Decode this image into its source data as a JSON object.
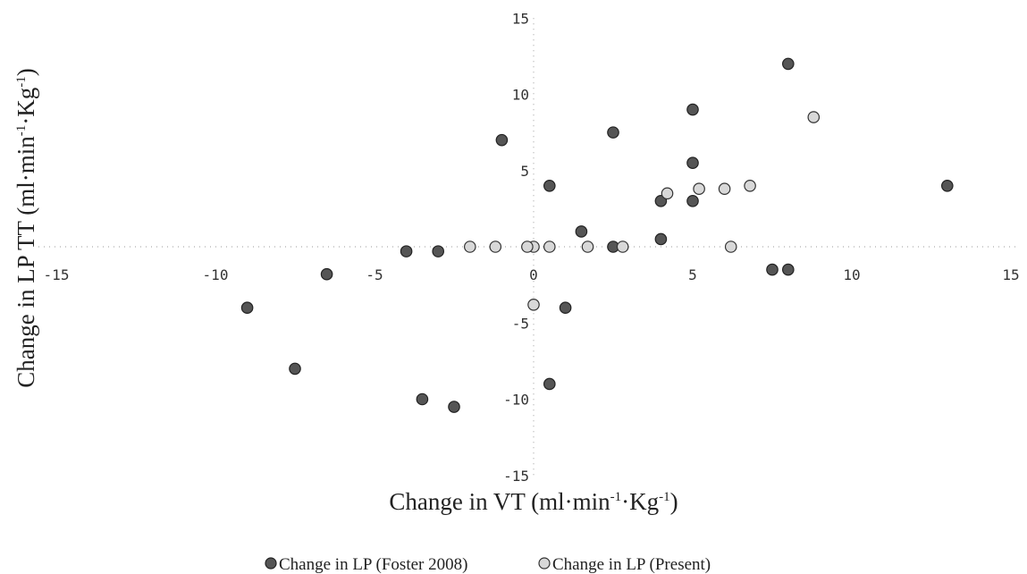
{
  "chart_data": {
    "type": "scatter",
    "xlabel": {
      "main": "Change in VT (ml·min",
      "sup1": "-1",
      "mid": "·Kg",
      "sup2": "-1",
      "end": ")"
    },
    "ylabel": {
      "main": "Change in LP TT (ml·min",
      "sup1": "-1",
      "mid": "·Kg",
      "sup2": "-1",
      "end": ")"
    },
    "xlim": [
      -15,
      15
    ],
    "ylim": [
      -15,
      15
    ],
    "x_ticks": [
      -15,
      -10,
      -5,
      0,
      5,
      10,
      15
    ],
    "y_ticks": [
      15,
      10,
      5,
      0,
      -5,
      -10,
      -15
    ],
    "grid": false,
    "legend_position": "bottom",
    "colors": {
      "foster": "#555555",
      "present": "#d8d8d8"
    },
    "series": [
      {
        "name": "Change in LP (Foster 2008)",
        "marker": "dark-circle",
        "points": [
          [
            8,
            12
          ],
          [
            5,
            9
          ],
          [
            2.5,
            7.5
          ],
          [
            -1,
            7
          ],
          [
            5,
            5.5
          ],
          [
            0.5,
            4
          ],
          [
            13,
            4
          ],
          [
            4,
            3
          ],
          [
            5,
            3
          ],
          [
            1.5,
            1
          ],
          [
            4,
            0.5
          ],
          [
            2.5,
            0
          ],
          [
            -4,
            -0.3
          ],
          [
            -3,
            -0.3
          ],
          [
            -6.5,
            -1.8
          ],
          [
            7.5,
            -1.5
          ],
          [
            8,
            -1.5
          ],
          [
            -9,
            -4
          ],
          [
            1,
            -4
          ],
          [
            -7.5,
            -8
          ],
          [
            0.5,
            -9
          ],
          [
            -3.5,
            -10
          ],
          [
            -2.5,
            -10.5
          ]
        ]
      },
      {
        "name": "Change in LP (Present)",
        "marker": "light-circle",
        "points": [
          [
            8.8,
            8.5
          ],
          [
            6.8,
            4
          ],
          [
            6,
            3.8
          ],
          [
            5.2,
            3.8
          ],
          [
            4.2,
            3.5
          ],
          [
            -2,
            0
          ],
          [
            -1.2,
            0
          ],
          [
            0,
            0
          ],
          [
            0.5,
            0
          ],
          [
            1.7,
            0
          ],
          [
            2.8,
            0
          ],
          [
            6.2,
            0
          ],
          [
            -0.2,
            0
          ],
          [
            0,
            -3.8
          ]
        ]
      }
    ]
  }
}
